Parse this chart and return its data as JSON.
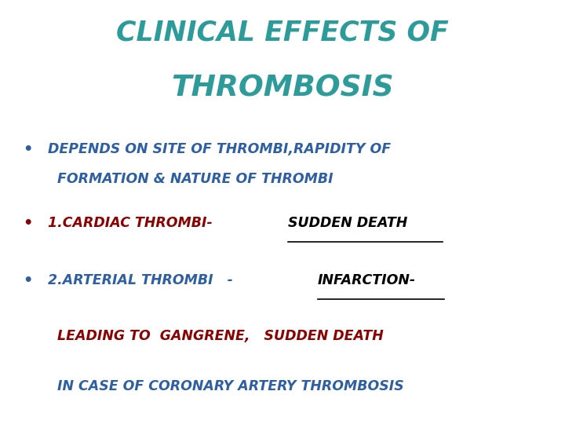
{
  "title_line1": "CLINICAL EFFECTS OF",
  "title_line2": "THROMBOSIS",
  "title_color": "#2E9B9B",
  "background_color": "#FFFFFF",
  "bullet1_line1": "DEPENDS ON SITE OF THROMBI,RAPIDITY OF",
  "bullet1_line2": "  FORMATION & NATURE OF THROMBI",
  "bullet1_color": "#2E5FA3",
  "bullet2_prefix": "1.CARDIAC THROMBI-  ",
  "bullet2_suffix": "SUDDEN DEATH",
  "bullet2_prefix_color": "#8B0000",
  "bullet2_suffix_color": "#000000",
  "bullet3_prefix": "2.ARTERIAL THROMBI   - ",
  "bullet3_suffix": "INFARCTION-",
  "bullet3_prefix_color": "#2E5FA3",
  "bullet3_suffix_color": "#000000",
  "line4": "  LEADING TO  GANGRENE,   SUDDEN DEATH",
  "line4_color": "#8B0000",
  "line5": "  IN CASE OF CORONARY ARTERY THROMBOSIS",
  "line5_color": "#2E5FA3"
}
